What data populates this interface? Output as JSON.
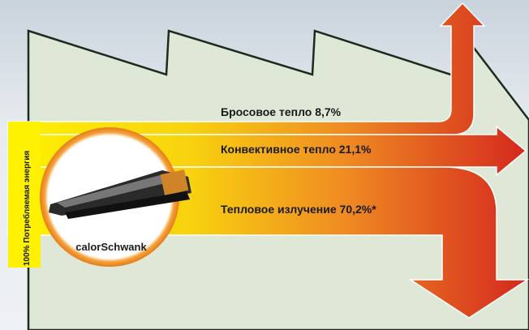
{
  "flows": {
    "waste": "Бросовое тепло 8,7%",
    "convection": "Конвективное тепло 21,1%",
    "radiation": "Тепловое излучение 70,2%*"
  },
  "source": {
    "label": "100% Потребляемая энергия",
    "product": "calorSchwank"
  }
}
